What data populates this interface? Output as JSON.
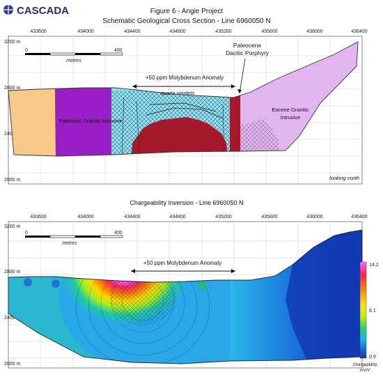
{
  "header": {
    "logo_text": "CASCADA",
    "figure_title": "Figure 6 - Angie Project",
    "figure_subtitle": "Schematic Geological Cross Section - Line 6960050 N"
  },
  "top_panel": {
    "x_ticks": [
      "433600",
      "434000",
      "434400",
      "434800",
      "435200",
      "435600",
      "436000",
      "436400"
    ],
    "y_ticks": [
      "3200 m",
      "2800 m",
      "2400 m",
      "2000 m"
    ],
    "scale_bar": {
      "start": "0",
      "end": "400",
      "unit": "metres"
    },
    "labels": {
      "anomaly": "+50 ppm Molybdenum Anomaly",
      "veinlets": "quartz veinlets",
      "porphyry_line1": "Paleocene",
      "porphyry_line2": "Dacitic Porphyry",
      "paleozoic": "Paleozoic Granitic Intrusive",
      "eocene_line1": "Eocene Granitic",
      "eocene_line2": "Intrusive",
      "view": "looking north"
    },
    "colors": {
      "paleozoic_orange": "#f9c98a",
      "paleozoic_purple": "#9a1fc9",
      "host_cyan": "#8fe3f2",
      "porphyry_red": "#a5192c",
      "eocene_lilac": "#e3b5f0"
    }
  },
  "bottom_panel": {
    "title": "Chargeability Inversion - Line 6960050 N",
    "x_ticks": [
      "433600",
      "434000",
      "434400",
      "434800",
      "435200",
      "435600",
      "436000",
      "436400"
    ],
    "y_ticks": [
      "3200 m",
      "2800 m",
      "2400 m",
      "2000 m"
    ],
    "scale_bar": {
      "start": "0",
      "end": "400",
      "unit": "metres"
    },
    "anomaly_label": "+50 ppm Molybdenum Anomaly",
    "colorbar": {
      "max": "14.2",
      "mid": "8.1",
      "min": "0.9",
      "title": "Chargeability",
      "unit": "mV/V",
      "stops": [
        "#ff66ff",
        "#ff2050",
        "#ff8a00",
        "#ffe400",
        "#b4f000",
        "#20d070",
        "#10c0e0",
        "#1a6ee0",
        "#1236b0"
      ]
    }
  }
}
